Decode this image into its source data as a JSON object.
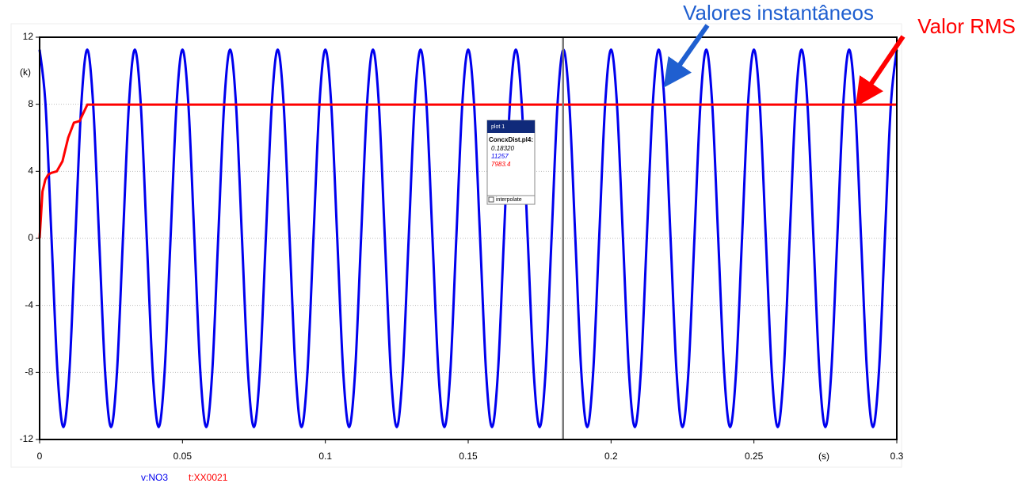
{
  "chart_data": {
    "type": "line",
    "y_label": "(k)",
    "x_label": "(s)",
    "xlim": [
      0,
      0.3
    ],
    "xticks": [
      0,
      0.05,
      0.1,
      0.15,
      0.2,
      0.25,
      0.3
    ],
    "ylim": [
      -12,
      12
    ],
    "yticks": [
      -12,
      -8,
      -4,
      0,
      4,
      8,
      12
    ],
    "grid": true,
    "annotations": [
      {
        "text": "Valores instantâneos",
        "color": "#1f5fd0"
      },
      {
        "text": "Valor RMS",
        "color": "#ff0000"
      }
    ],
    "cursor": 0.1832,
    "readout": {
      "title": "plot 1",
      "file": "ConcxDist.pl4:",
      "time": "0.18320",
      "values": [
        "11257",
        "7983.4"
      ],
      "checkbox": "interpolate"
    },
    "series": [
      {
        "name": "v:NO3",
        "color": "#0000ee",
        "x": [
          0,
          0.00208,
          0.00417,
          0.00625,
          0.00833,
          0.01042,
          0.0125,
          0.01458,
          0.01667,
          0.01875,
          0.02083,
          0.02292,
          0.025,
          0.02708,
          0.02917,
          0.03125,
          0.03333,
          0.03542,
          0.0375,
          0.03958,
          0.04167,
          0.04375,
          0.04583,
          0.04792,
          0.05,
          0.05208,
          0.05417,
          0.05625,
          0.05833,
          0.06042,
          0.0625,
          0.06458,
          0.06667,
          0.06875,
          0.07083,
          0.07292,
          0.075,
          0.07708,
          0.07917,
          0.08125,
          0.08333,
          0.08542,
          0.0875,
          0.08958,
          0.09167,
          0.09375,
          0.09583,
          0.09792,
          0.1,
          0.10208,
          0.10417,
          0.10625,
          0.10833,
          0.11042,
          0.1125,
          0.11458,
          0.11667,
          0.11875,
          0.12083,
          0.12292,
          0.125,
          0.12708,
          0.12917,
          0.13125,
          0.13333,
          0.13542,
          0.1375,
          0.13958,
          0.14167,
          0.14375,
          0.14583,
          0.14792,
          0.15,
          0.15208,
          0.15417,
          0.15625,
          0.15833,
          0.16042,
          0.1625,
          0.16458,
          0.16667,
          0.16875,
          0.17083,
          0.17292,
          0.175,
          0.17708,
          0.17917,
          0.18125,
          0.18333,
          0.18542,
          0.1875,
          0.18958,
          0.19167,
          0.19375,
          0.19583,
          0.19792,
          0.2,
          0.20208,
          0.20417,
          0.20625,
          0.20833,
          0.21042,
          0.2125,
          0.21458,
          0.21667,
          0.21875,
          0.22083,
          0.22292,
          0.225,
          0.22708,
          0.22917,
          0.23125,
          0.23333,
          0.23542,
          0.2375,
          0.23958,
          0.24167,
          0.24375,
          0.24583,
          0.24792,
          0.25,
          0.25208,
          0.25417,
          0.25625,
          0.25833,
          0.26042,
          0.2625,
          0.26458,
          0.26667,
          0.26875,
          0.27083,
          0.27292,
          0.275,
          0.27708,
          0.27917,
          0.28125,
          0.28333,
          0.28542,
          0.2875,
          0.28958,
          0.29167,
          0.29375,
          0.29583,
          0.29792,
          0.3
        ],
        "values": [
          11.26,
          7.96,
          0,
          -7.96,
          -11.26,
          -7.96,
          0,
          7.96,
          11.26,
          7.96,
          0,
          -7.96,
          -11.26,
          -7.96,
          0,
          7.96,
          11.26,
          7.96,
          0,
          -7.96,
          -11.26,
          -7.96,
          0,
          7.96,
          11.26,
          7.96,
          0,
          -7.96,
          -11.26,
          -7.96,
          0,
          7.96,
          11.26,
          7.96,
          0,
          -7.96,
          -11.26,
          -7.96,
          0,
          7.96,
          11.26,
          7.96,
          0,
          -7.96,
          -11.26,
          -7.96,
          0,
          7.96,
          11.26,
          7.96,
          0,
          -7.96,
          -11.26,
          -7.96,
          0,
          7.96,
          11.26,
          7.96,
          0,
          -7.96,
          -11.26,
          -7.96,
          0,
          7.96,
          11.26,
          7.96,
          0,
          -7.96,
          -11.26,
          -7.96,
          0,
          7.96,
          11.26,
          7.96,
          0,
          -7.96,
          -11.26,
          -7.96,
          0,
          7.96,
          11.26,
          7.96,
          0,
          -7.96,
          -11.26,
          -7.96,
          0,
          7.96,
          11.26,
          7.96,
          0,
          -7.96,
          -11.26,
          -7.96,
          0,
          7.96,
          11.26,
          7.96,
          0,
          -7.96,
          -11.26,
          -7.96,
          0,
          7.96,
          11.26,
          7.96,
          0,
          -7.96,
          -11.26,
          -7.96,
          0,
          7.96,
          11.26,
          7.96,
          0,
          -7.96,
          -11.26,
          -7.96,
          0,
          7.96,
          11.26,
          7.96,
          0,
          -7.96,
          -11.26,
          -7.96,
          0,
          7.96,
          11.26,
          7.96,
          0,
          -7.96,
          -11.26,
          -7.96,
          0,
          7.96,
          11.26,
          7.96,
          0,
          -7.96,
          -11.26,
          -7.96,
          0,
          7.96,
          11.26
        ]
      },
      {
        "name": "t:XX0021",
        "color": "#ff0000",
        "x": [
          0,
          0.001,
          0.002,
          0.003,
          0.004,
          0.006,
          0.008,
          0.01,
          0.012,
          0.014,
          0.0167,
          0.3
        ],
        "values": [
          0,
          2.8,
          3.5,
          3.8,
          3.9,
          4.0,
          4.6,
          6.0,
          6.9,
          7.0,
          7.98,
          7.98
        ]
      }
    ]
  }
}
